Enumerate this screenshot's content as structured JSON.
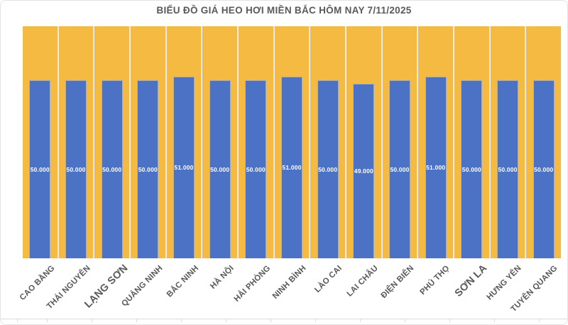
{
  "title": "BIỂU ĐỒ GIÁ HEO HƠI MIỀN BẮC HÔM NAY 7/11/2025",
  "chart_data": {
    "type": "bar",
    "title": "BIỂU ĐỒ GIÁ HEO HƠI MIỀN BẮC HÔM NAY 7/11/2025",
    "categories": [
      "CAO BẰNG",
      "THÁI NGUYÊN",
      "LẠNG SƠN",
      "QUẢNG NINH",
      "BẮC NINH",
      "HÀ NỘI",
      "HẢI PHÒNG",
      "NINH BÌNH",
      "LÀO CAI",
      "LAI CHÂU",
      "ĐIỆN BIÊN",
      "PHÚ THỌ",
      "SƠN LA",
      "HƯNG YÊN",
      "TUYÊN QUANG"
    ],
    "values": [
      50000,
      50000,
      50000,
      50000,
      51000,
      50000,
      50000,
      51000,
      50000,
      49000,
      50000,
      51000,
      50000,
      50000,
      50000
    ],
    "value_labels": [
      "50.000",
      "50.000",
      "50.000",
      "50.000",
      "51.000",
      "50.000",
      "50.000",
      "51.000",
      "50.000",
      "49.000",
      "50.000",
      "51.000",
      "50.000",
      "50.000",
      "50.000"
    ],
    "emphasized_categories": [
      "LẠNG SƠN",
      "SƠN LA"
    ],
    "xlabel": "",
    "ylabel": "",
    "ylim": [
      0,
      65100
    ],
    "grid": false,
    "legend_position": "none",
    "value_labels_position": "center-of-bar",
    "x_labels_rotation_deg": -45,
    "colors": {
      "bar": "#4C72C6",
      "plot_bg": "#F5BA42",
      "separator": "#EFEBE2",
      "text": "#595959",
      "value_text": "#FFFFFF",
      "border": "#E3E3E3",
      "gridline": "#DBDBDB"
    }
  }
}
